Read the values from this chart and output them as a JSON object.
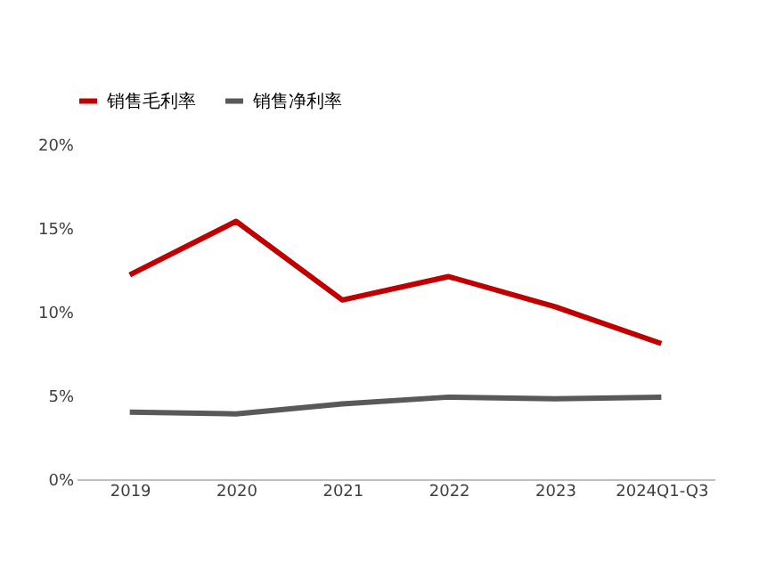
{
  "chart_data": {
    "type": "line",
    "categories": [
      "2019",
      "2020",
      "2021",
      "2022",
      "2023",
      "2024Q1-Q3"
    ],
    "series": [
      {
        "name": "销售毛利率",
        "color": "#c00000",
        "values": [
          12.2,
          15.4,
          10.7,
          12.1,
          10.3,
          8.1
        ]
      },
      {
        "name": "销售净利率",
        "color": "#595959",
        "values": [
          4.0,
          3.9,
          4.5,
          4.9,
          4.8,
          4.9
        ]
      }
    ],
    "ylim": [
      0,
      20
    ],
    "yticks": [
      {
        "value": 0,
        "label": "0%"
      },
      {
        "value": 5,
        "label": "5%"
      },
      {
        "value": 10,
        "label": "10%"
      },
      {
        "value": 15,
        "label": "15%"
      },
      {
        "value": 20,
        "label": "20%"
      }
    ],
    "grid": false,
    "legend": "top",
    "marker": "none",
    "line_style": "solid"
  }
}
